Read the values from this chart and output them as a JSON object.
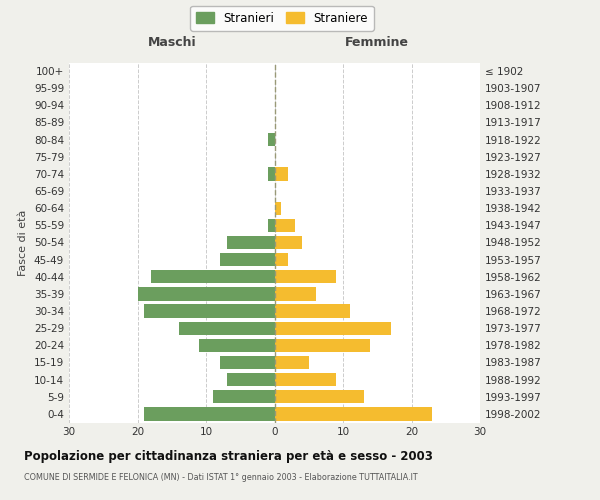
{
  "age_groups": [
    "0-4",
    "5-9",
    "10-14",
    "15-19",
    "20-24",
    "25-29",
    "30-34",
    "35-39",
    "40-44",
    "45-49",
    "50-54",
    "55-59",
    "60-64",
    "65-69",
    "70-74",
    "75-79",
    "80-84",
    "85-89",
    "90-94",
    "95-99",
    "100+"
  ],
  "birth_years": [
    "1998-2002",
    "1993-1997",
    "1988-1992",
    "1983-1987",
    "1978-1982",
    "1973-1977",
    "1968-1972",
    "1963-1967",
    "1958-1962",
    "1953-1957",
    "1948-1952",
    "1943-1947",
    "1938-1942",
    "1933-1937",
    "1928-1932",
    "1923-1927",
    "1918-1922",
    "1913-1917",
    "1908-1912",
    "1903-1907",
    "≤ 1902"
  ],
  "males": [
    19,
    9,
    7,
    8,
    11,
    14,
    19,
    20,
    18,
    8,
    7,
    1,
    0,
    0,
    1,
    0,
    1,
    0,
    0,
    0,
    0
  ],
  "females": [
    23,
    13,
    9,
    5,
    14,
    17,
    11,
    6,
    9,
    2,
    4,
    3,
    1,
    0,
    2,
    0,
    0,
    0,
    0,
    0,
    0
  ],
  "male_color": "#6b9e5e",
  "female_color": "#f5bc2f",
  "background_color": "#f0f0eb",
  "plot_background": "#ffffff",
  "grid_color": "#cccccc",
  "title": "Popolazione per cittadinanza straniera per età e sesso - 2003",
  "subtitle": "COMUNE DI SERMIDE E FELONICA (MN) - Dati ISTAT 1° gennaio 2003 - Elaborazione TUTTAITALIA.IT",
  "xlabel_left": "Maschi",
  "xlabel_right": "Femmine",
  "ylabel_left": "Fasce di età",
  "xlim": 30,
  "legend_male": "Stranieri",
  "legend_female": "Straniere"
}
